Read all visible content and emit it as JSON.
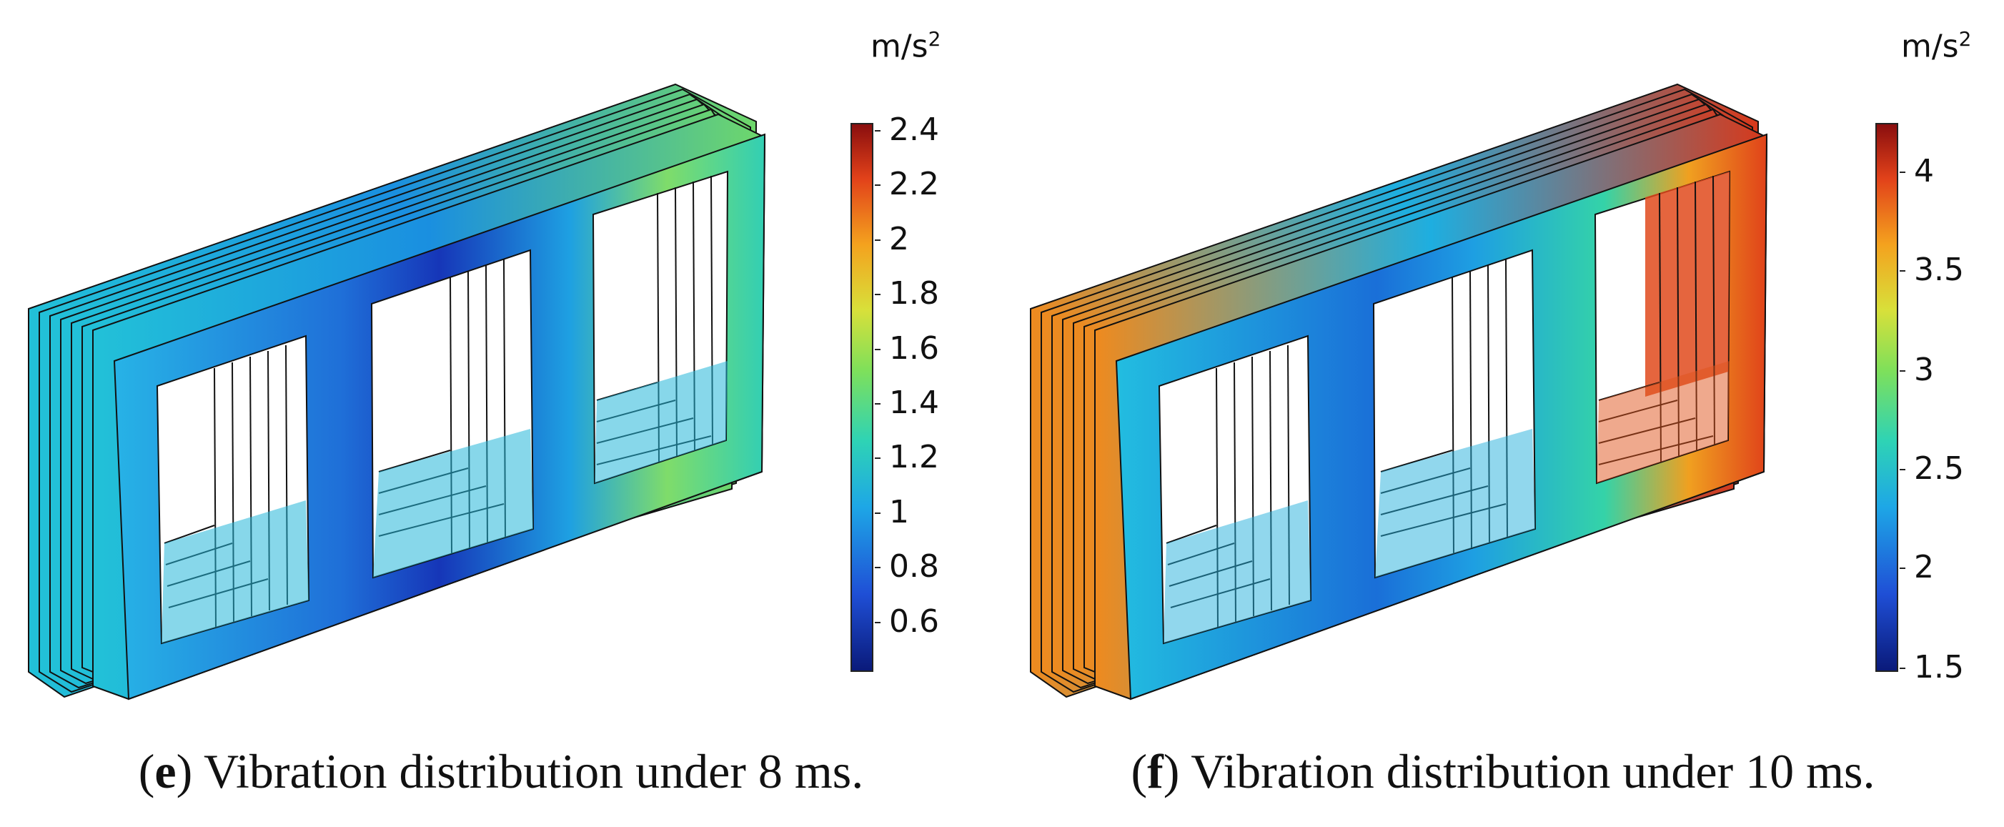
{
  "panels": [
    {
      "id": "e",
      "unit": "m/s",
      "unit_exp": "2",
      "ticks": [
        "2.4",
        "2.2",
        "2",
        "1.8",
        "1.6",
        "1.4",
        "1.2",
        "1",
        "0.8",
        "0.6"
      ],
      "caption_letter": "e",
      "caption_text": "Vibration distribution under 8 ms."
    },
    {
      "id": "f",
      "unit": "m/s",
      "unit_exp": "2",
      "ticks": [
        "4",
        "3.5",
        "3",
        "2.5",
        "2",
        "1.5"
      ],
      "caption_letter": "f",
      "caption_text": "Vibration distribution under 10 ms."
    }
  ]
}
